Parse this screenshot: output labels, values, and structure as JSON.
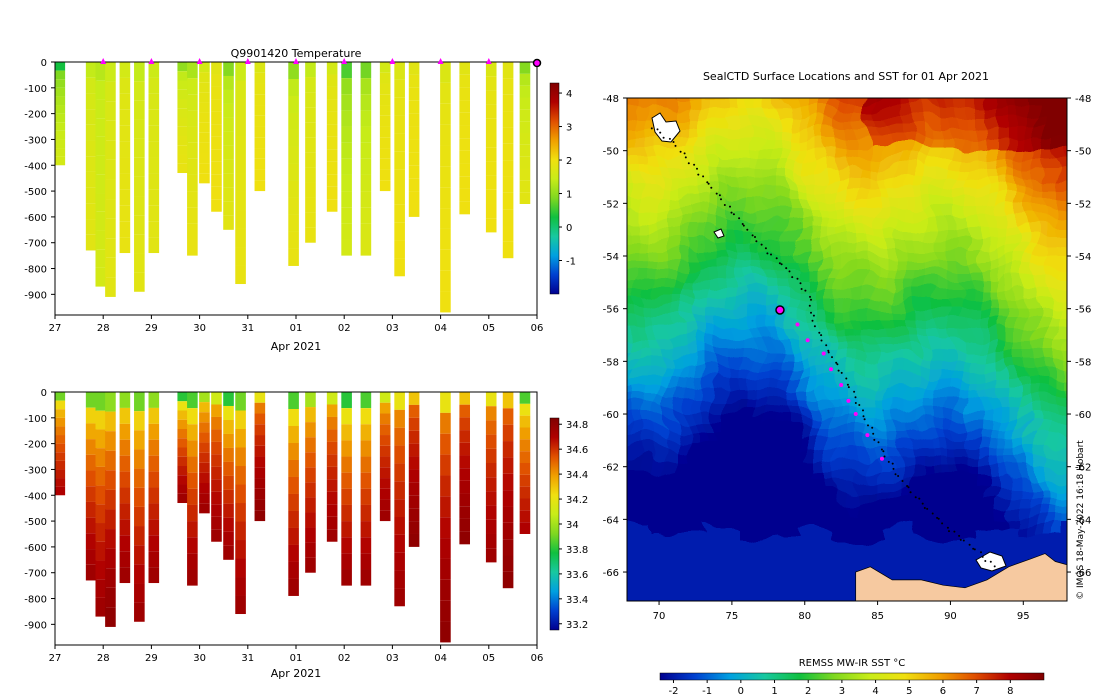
{
  "page": {
    "credit": "© IMOS 18-May-2022 16:18 Hobart"
  },
  "colors": {
    "temperature_ramp": [
      "#00008f",
      "#0040d0",
      "#00a0e0",
      "#18c8a0",
      "#10c040",
      "#80d820",
      "#c8ec18",
      "#f0e010",
      "#f0a000",
      "#e05000",
      "#b00000",
      "#800000"
    ],
    "land": "#f6c9a0",
    "track_point": "#000000",
    "marker": "#ff00ff",
    "axis": "#000000"
  },
  "chart_data": [
    {
      "id": "temperature-profile",
      "type": "heatmap",
      "title": "Q9901420  Temperature",
      "xlabel": "Apr 2021",
      "ylabel": "",
      "x_ticks": [
        "27",
        "28",
        "29",
        "30",
        "31",
        "01",
        "02",
        "03",
        "04",
        "05",
        "06"
      ],
      "x_tick_values": [
        0,
        1,
        2,
        3,
        4,
        5,
        6,
        7,
        8,
        9,
        10
      ],
      "xlim": [
        0,
        10
      ],
      "y_ticks": [
        "0",
        "-100",
        "-200",
        "-300",
        "-400",
        "-500",
        "-600",
        "-700",
        "-800",
        "-900"
      ],
      "y_tick_values": [
        0,
        -100,
        -200,
        -300,
        -400,
        -500,
        -600,
        -700,
        -800,
        -900
      ],
      "ylim": [
        -980,
        0
      ],
      "colorbar": {
        "ticks": [
          "-1",
          "0",
          "1",
          "2",
          "3",
          "4"
        ],
        "values": [
          -1,
          0,
          1,
          2,
          3,
          4
        ],
        "range": [
          -2,
          4.3
        ]
      },
      "marker_days": [
        1,
        2,
        3,
        4,
        5,
        6,
        7,
        8,
        9
      ],
      "current_day": 10,
      "profiles": [
        {
          "day": 0.1,
          "depth": 400,
          "surface": 0.3,
          "deep": 1.6
        },
        {
          "day": 0.75,
          "depth": 730,
          "surface": 1.4,
          "deep": 1.8
        },
        {
          "day": 0.95,
          "depth": 870,
          "surface": 1.3,
          "deep": 1.6
        },
        {
          "day": 1.15,
          "depth": 910,
          "surface": 1.5,
          "deep": 1.8
        },
        {
          "day": 1.45,
          "depth": 740,
          "surface": 1.6,
          "deep": 1.9
        },
        {
          "day": 1.75,
          "depth": 890,
          "surface": 1.4,
          "deep": 1.8
        },
        {
          "day": 2.05,
          "depth": 740,
          "surface": 1.5,
          "deep": 1.8
        },
        {
          "day": 2.65,
          "depth": 430,
          "surface": 1.0,
          "deep": 1.9
        },
        {
          "day": 2.85,
          "depth": 750,
          "surface": 1.2,
          "deep": 1.9
        },
        {
          "day": 3.1,
          "depth": 470,
          "surface": 1.6,
          "deep": 2.0
        },
        {
          "day": 3.35,
          "depth": 580,
          "surface": 1.8,
          "deep": 2.0
        },
        {
          "day": 3.6,
          "depth": 650,
          "surface": 0.9,
          "deep": 1.8
        },
        {
          "day": 3.85,
          "depth": 860,
          "surface": 1.5,
          "deep": 1.9
        },
        {
          "day": 4.25,
          "depth": 500,
          "surface": 1.7,
          "deep": 2.0
        },
        {
          "day": 4.95,
          "depth": 790,
          "surface": 1.0,
          "deep": 1.9
        },
        {
          "day": 5.3,
          "depth": 700,
          "surface": 1.4,
          "deep": 1.9
        },
        {
          "day": 5.75,
          "depth": 580,
          "surface": 1.6,
          "deep": 2.0
        },
        {
          "day": 6.05,
          "depth": 750,
          "surface": 0.6,
          "deep": 1.6
        },
        {
          "day": 6.45,
          "depth": 750,
          "surface": 0.8,
          "deep": 1.7
        },
        {
          "day": 6.85,
          "depth": 500,
          "surface": 1.6,
          "deep": 2.0
        },
        {
          "day": 7.15,
          "depth": 830,
          "surface": 1.7,
          "deep": 2.0
        },
        {
          "day": 7.45,
          "depth": 600,
          "surface": 1.8,
          "deep": 2.0
        },
        {
          "day": 8.1,
          "depth": 970,
          "surface": 1.7,
          "deep": 2.0
        },
        {
          "day": 8.5,
          "depth": 590,
          "surface": 1.8,
          "deep": 2.0
        },
        {
          "day": 9.05,
          "depth": 660,
          "surface": 1.7,
          "deep": 2.0
        },
        {
          "day": 9.4,
          "depth": 760,
          "surface": 1.8,
          "deep": 2.0
        },
        {
          "day": 9.75,
          "depth": 550,
          "surface": 0.9,
          "deep": 1.8
        }
      ]
    },
    {
      "id": "salinity-profile",
      "type": "heatmap",
      "title": "",
      "xlabel": "Apr 2021",
      "ylabel": "",
      "x_ticks": [
        "27",
        "28",
        "29",
        "30",
        "31",
        "01",
        "02",
        "03",
        "04",
        "05",
        "06"
      ],
      "x_tick_values": [
        0,
        1,
        2,
        3,
        4,
        5,
        6,
        7,
        8,
        9,
        10
      ],
      "xlim": [
        0,
        10
      ],
      "y_ticks": [
        "0",
        "-100",
        "-200",
        "-300",
        "-400",
        "-500",
        "-600",
        "-700",
        "-800",
        "-900"
      ],
      "y_tick_values": [
        0,
        -100,
        -200,
        -300,
        -400,
        -500,
        -600,
        -700,
        -800,
        -900
      ],
      "ylim": [
        -980,
        0
      ],
      "colorbar": {
        "ticks": [
          "33.2",
          "33.4",
          "33.6",
          "33.8",
          "34",
          "34.2",
          "34.4",
          "34.6",
          "34.8"
        ],
        "values": [
          33.2,
          33.4,
          33.6,
          33.8,
          34.0,
          34.2,
          34.4,
          34.6,
          34.8
        ],
        "range": [
          33.15,
          34.85
        ]
      },
      "profiles": [
        {
          "day": 0.1,
          "depth": 400,
          "surface": 33.9,
          "deep": 34.7
        },
        {
          "day": 0.75,
          "depth": 730,
          "surface": 33.9,
          "deep": 34.75
        },
        {
          "day": 0.95,
          "depth": 870,
          "surface": 33.9,
          "deep": 34.75
        },
        {
          "day": 1.15,
          "depth": 910,
          "surface": 33.95,
          "deep": 34.8
        },
        {
          "day": 1.45,
          "depth": 740,
          "surface": 33.95,
          "deep": 34.75
        },
        {
          "day": 1.75,
          "depth": 890,
          "surface": 33.9,
          "deep": 34.75
        },
        {
          "day": 2.05,
          "depth": 740,
          "surface": 33.95,
          "deep": 34.75
        },
        {
          "day": 2.65,
          "depth": 430,
          "surface": 33.8,
          "deep": 34.75
        },
        {
          "day": 2.85,
          "depth": 750,
          "surface": 33.85,
          "deep": 34.75
        },
        {
          "day": 3.1,
          "depth": 470,
          "surface": 34.0,
          "deep": 34.75
        },
        {
          "day": 3.35,
          "depth": 580,
          "surface": 34.1,
          "deep": 34.75
        },
        {
          "day": 3.6,
          "depth": 650,
          "surface": 33.8,
          "deep": 34.75
        },
        {
          "day": 3.85,
          "depth": 860,
          "surface": 33.9,
          "deep": 34.75
        },
        {
          "day": 4.25,
          "depth": 500,
          "surface": 34.2,
          "deep": 34.8
        },
        {
          "day": 4.95,
          "depth": 790,
          "surface": 33.85,
          "deep": 34.75
        },
        {
          "day": 5.3,
          "depth": 700,
          "surface": 34.0,
          "deep": 34.75
        },
        {
          "day": 5.75,
          "depth": 580,
          "surface": 34.1,
          "deep": 34.75
        },
        {
          "day": 6.05,
          "depth": 750,
          "surface": 33.8,
          "deep": 34.75
        },
        {
          "day": 6.45,
          "depth": 750,
          "surface": 33.85,
          "deep": 34.75
        },
        {
          "day": 6.85,
          "depth": 500,
          "surface": 34.1,
          "deep": 34.75
        },
        {
          "day": 7.15,
          "depth": 830,
          "surface": 34.2,
          "deep": 34.75
        },
        {
          "day": 7.45,
          "depth": 600,
          "surface": 34.3,
          "deep": 34.8
        },
        {
          "day": 8.1,
          "depth": 970,
          "surface": 34.2,
          "deep": 34.8
        },
        {
          "day": 8.5,
          "depth": 590,
          "surface": 34.3,
          "deep": 34.8
        },
        {
          "day": 9.05,
          "depth": 660,
          "surface": 34.2,
          "deep": 34.75
        },
        {
          "day": 9.4,
          "depth": 760,
          "surface": 34.3,
          "deep": 34.8
        },
        {
          "day": 9.75,
          "depth": 550,
          "surface": 33.85,
          "deep": 34.7
        }
      ]
    },
    {
      "id": "sst-map",
      "type": "heatmap",
      "title": "SealCTD Surface Locations and SST for 01 Apr 2021",
      "xlabel": "",
      "ylabel": "",
      "x_ticks": [
        "70",
        "75",
        "80",
        "85",
        "90",
        "95"
      ],
      "x_tick_values": [
        70,
        75,
        80,
        85,
        90,
        95
      ],
      "xlim": [
        67.8,
        98
      ],
      "y_ticks": [
        "-48",
        "-50",
        "-52",
        "-54",
        "-56",
        "-58",
        "-60",
        "-62",
        "-64",
        "-66"
      ],
      "y_tick_values": [
        -48,
        -50,
        -52,
        -54,
        -56,
        -58,
        -60,
        -62,
        -64,
        -66
      ],
      "ylim": [
        -67.1,
        -48
      ],
      "colorbar": {
        "title": "REMSS MW-IR SST °C",
        "ticks": [
          "-2",
          "-1",
          "0",
          "1",
          "2",
          "3",
          "4",
          "5",
          "6",
          "7",
          "8"
        ],
        "values": [
          -2,
          -1,
          0,
          1,
          2,
          3,
          4,
          5,
          6,
          7,
          8
        ],
        "range": [
          -2.4,
          9.0
        ]
      },
      "current_position": {
        "lon": 78.3,
        "lat": -56.05
      },
      "track": [
        {
          "lon": 69.5,
          "lat": -49.1
        },
        {
          "lon": 71.0,
          "lat": -49.7
        },
        {
          "lon": 73.0,
          "lat": -51.0
        },
        {
          "lon": 75.0,
          "lat": -52.3
        },
        {
          "lon": 77.0,
          "lat": -53.6
        },
        {
          "lon": 79.0,
          "lat": -54.6
        },
        {
          "lon": 80.3,
          "lat": -55.5
        },
        {
          "lon": 80.6,
          "lat": -56.5
        },
        {
          "lon": 81.4,
          "lat": -57.4
        },
        {
          "lon": 82.4,
          "lat": -58.3
        },
        {
          "lon": 83.3,
          "lat": -59.2
        },
        {
          "lon": 84.2,
          "lat": -60.2
        },
        {
          "lon": 85.2,
          "lat": -61.3
        },
        {
          "lon": 86.5,
          "lat": -62.4
        },
        {
          "lon": 88.0,
          "lat": -63.4
        },
        {
          "lon": 90.0,
          "lat": -64.4
        },
        {
          "lon": 92.0,
          "lat": -65.3
        },
        {
          "lon": 93.2,
          "lat": -65.9
        }
      ],
      "recent_positions": [
        {
          "lon": 79.5,
          "lat": -56.6
        },
        {
          "lon": 80.2,
          "lat": -57.2
        },
        {
          "lon": 81.3,
          "lat": -57.7
        },
        {
          "lon": 81.8,
          "lat": -58.3
        },
        {
          "lon": 82.5,
          "lat": -58.9
        },
        {
          "lon": 83.0,
          "lat": -59.5
        },
        {
          "lon": 83.5,
          "lat": -60.0
        },
        {
          "lon": 84.3,
          "lat": -60.8
        },
        {
          "lon": 85.3,
          "lat": -61.7
        }
      ]
    }
  ]
}
